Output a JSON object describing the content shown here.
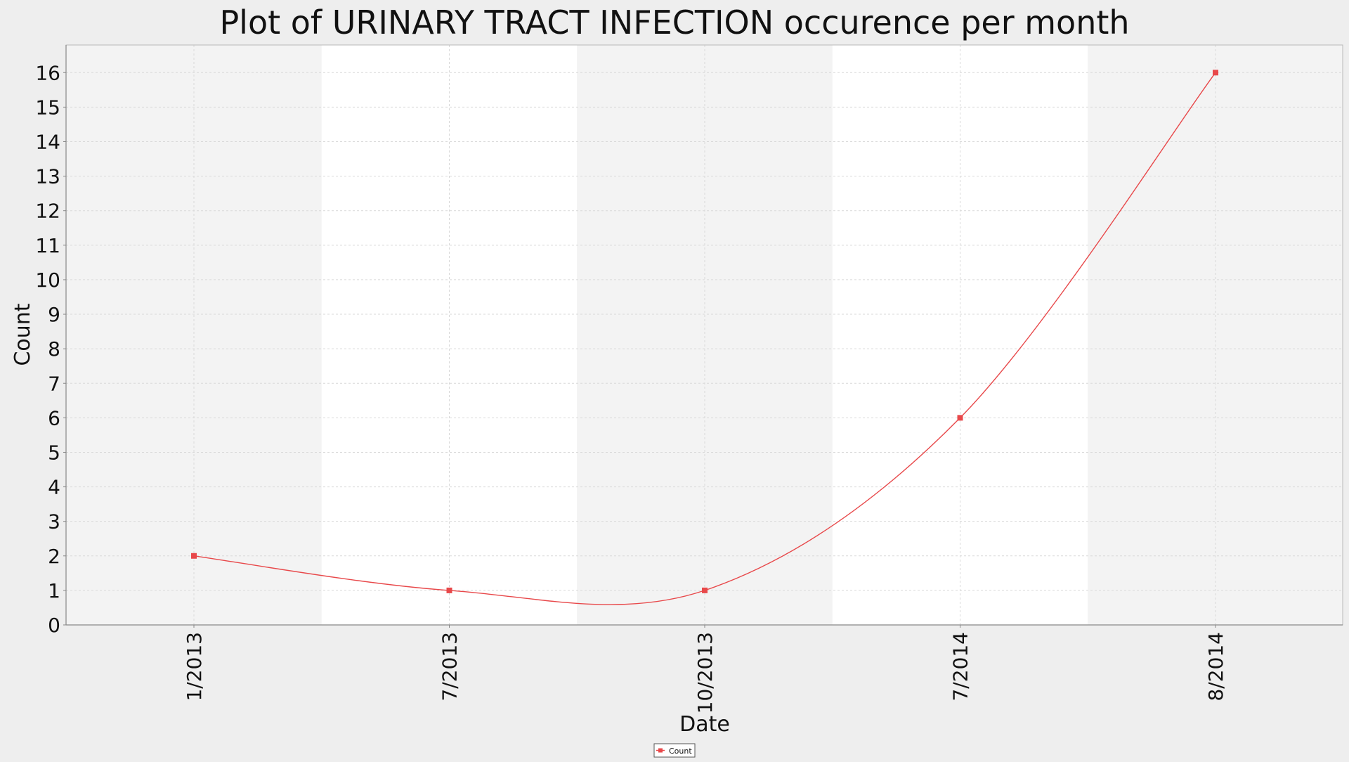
{
  "chart_data": {
    "type": "line",
    "title": "Plot of URINARY TRACT INFECTION occurence per month",
    "xlabel": "Date",
    "ylabel": "Count",
    "categories": [
      "1/2013",
      "7/2013",
      "10/2013",
      "7/2014",
      "8/2014"
    ],
    "series": [
      {
        "name": "Count",
        "values": [
          2,
          1,
          1,
          6,
          16
        ],
        "color": "#e8484a"
      }
    ],
    "ylim": [
      0,
      16.8
    ],
    "yticks": [
      0,
      1,
      2,
      3,
      4,
      5,
      6,
      7,
      8,
      9,
      10,
      11,
      12,
      13,
      14,
      15,
      16
    ],
    "grid": true,
    "legend": "bottom-center",
    "colors": {
      "page_background": "#eeeeee",
      "plot_band_dark": "#f3f3f3",
      "plot_band_light": "#ffffff",
      "gridline": "#d9d9d9",
      "axis": "#888888",
      "text": "#111111"
    }
  }
}
